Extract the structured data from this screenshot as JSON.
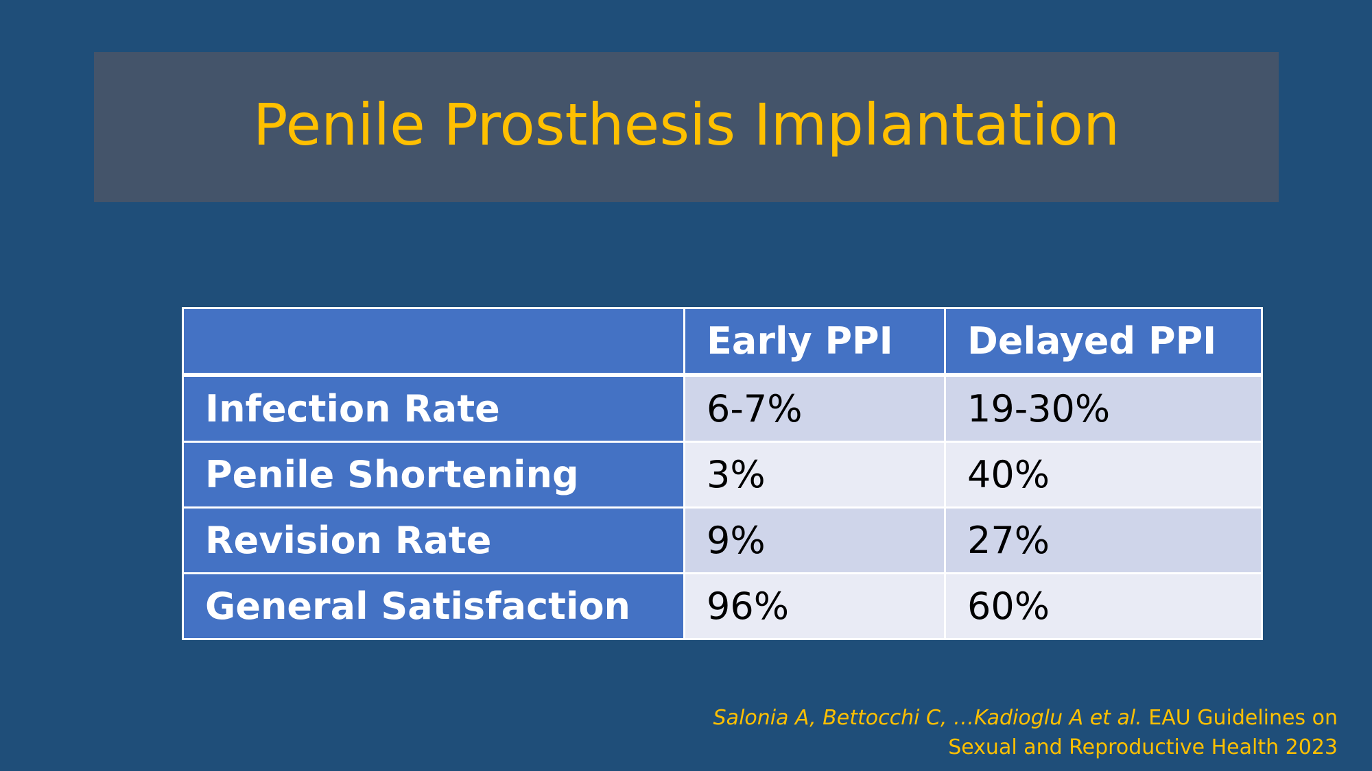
{
  "slide": {
    "title": "Penile Prosthesis Implantation",
    "background_color": "#1f4e79",
    "title_band_color": "#44546a",
    "title_color": "#ffc000"
  },
  "table": {
    "headers": [
      "",
      "Early PPI",
      "Delayed PPI"
    ],
    "rows": [
      {
        "label": "Infection Rate",
        "early": "6-7%",
        "delayed": "19-30%"
      },
      {
        "label": "Penile Shortening",
        "early": "3%",
        "delayed": "40%"
      },
      {
        "label": "Revision Rate",
        "early": "9%",
        "delayed": "27%"
      },
      {
        "label": "General Satisfaction",
        "early": "96%",
        "delayed": "60%"
      }
    ],
    "header_color": "#4472c4",
    "band_dark": "#cfd5ea",
    "band_light": "#e9ebf5"
  },
  "citation": {
    "authors": "Salonia A, Bettocchi C, …Kadioglu A et al.",
    "source_line1": " EAU Guidelines on",
    "source_line2": "Sexual and Reproductive Health 2023"
  }
}
